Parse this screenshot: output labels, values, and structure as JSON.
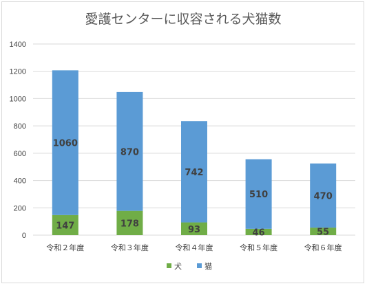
{
  "chart_data": {
    "type": "bar",
    "stacked": true,
    "title": "愛護センターに収容される犬猫数",
    "categories": [
      "令和２年度",
      "令和３年度",
      "令和４年度",
      "令和５年度",
      "令和６年度"
    ],
    "series": [
      {
        "name": "犬",
        "values": [
          147,
          178,
          93,
          46,
          55
        ],
        "color": "#70ad47"
      },
      {
        "name": "猫",
        "values": [
          1060,
          870,
          742,
          510,
          470
        ],
        "color": "#5b9bd5"
      }
    ],
    "ylim": [
      0,
      1400
    ],
    "yticks": [
      "0",
      "200",
      "400",
      "600",
      "800",
      "1000",
      "1200",
      "1400"
    ],
    "grid": true,
    "legend_position": "bottom"
  }
}
